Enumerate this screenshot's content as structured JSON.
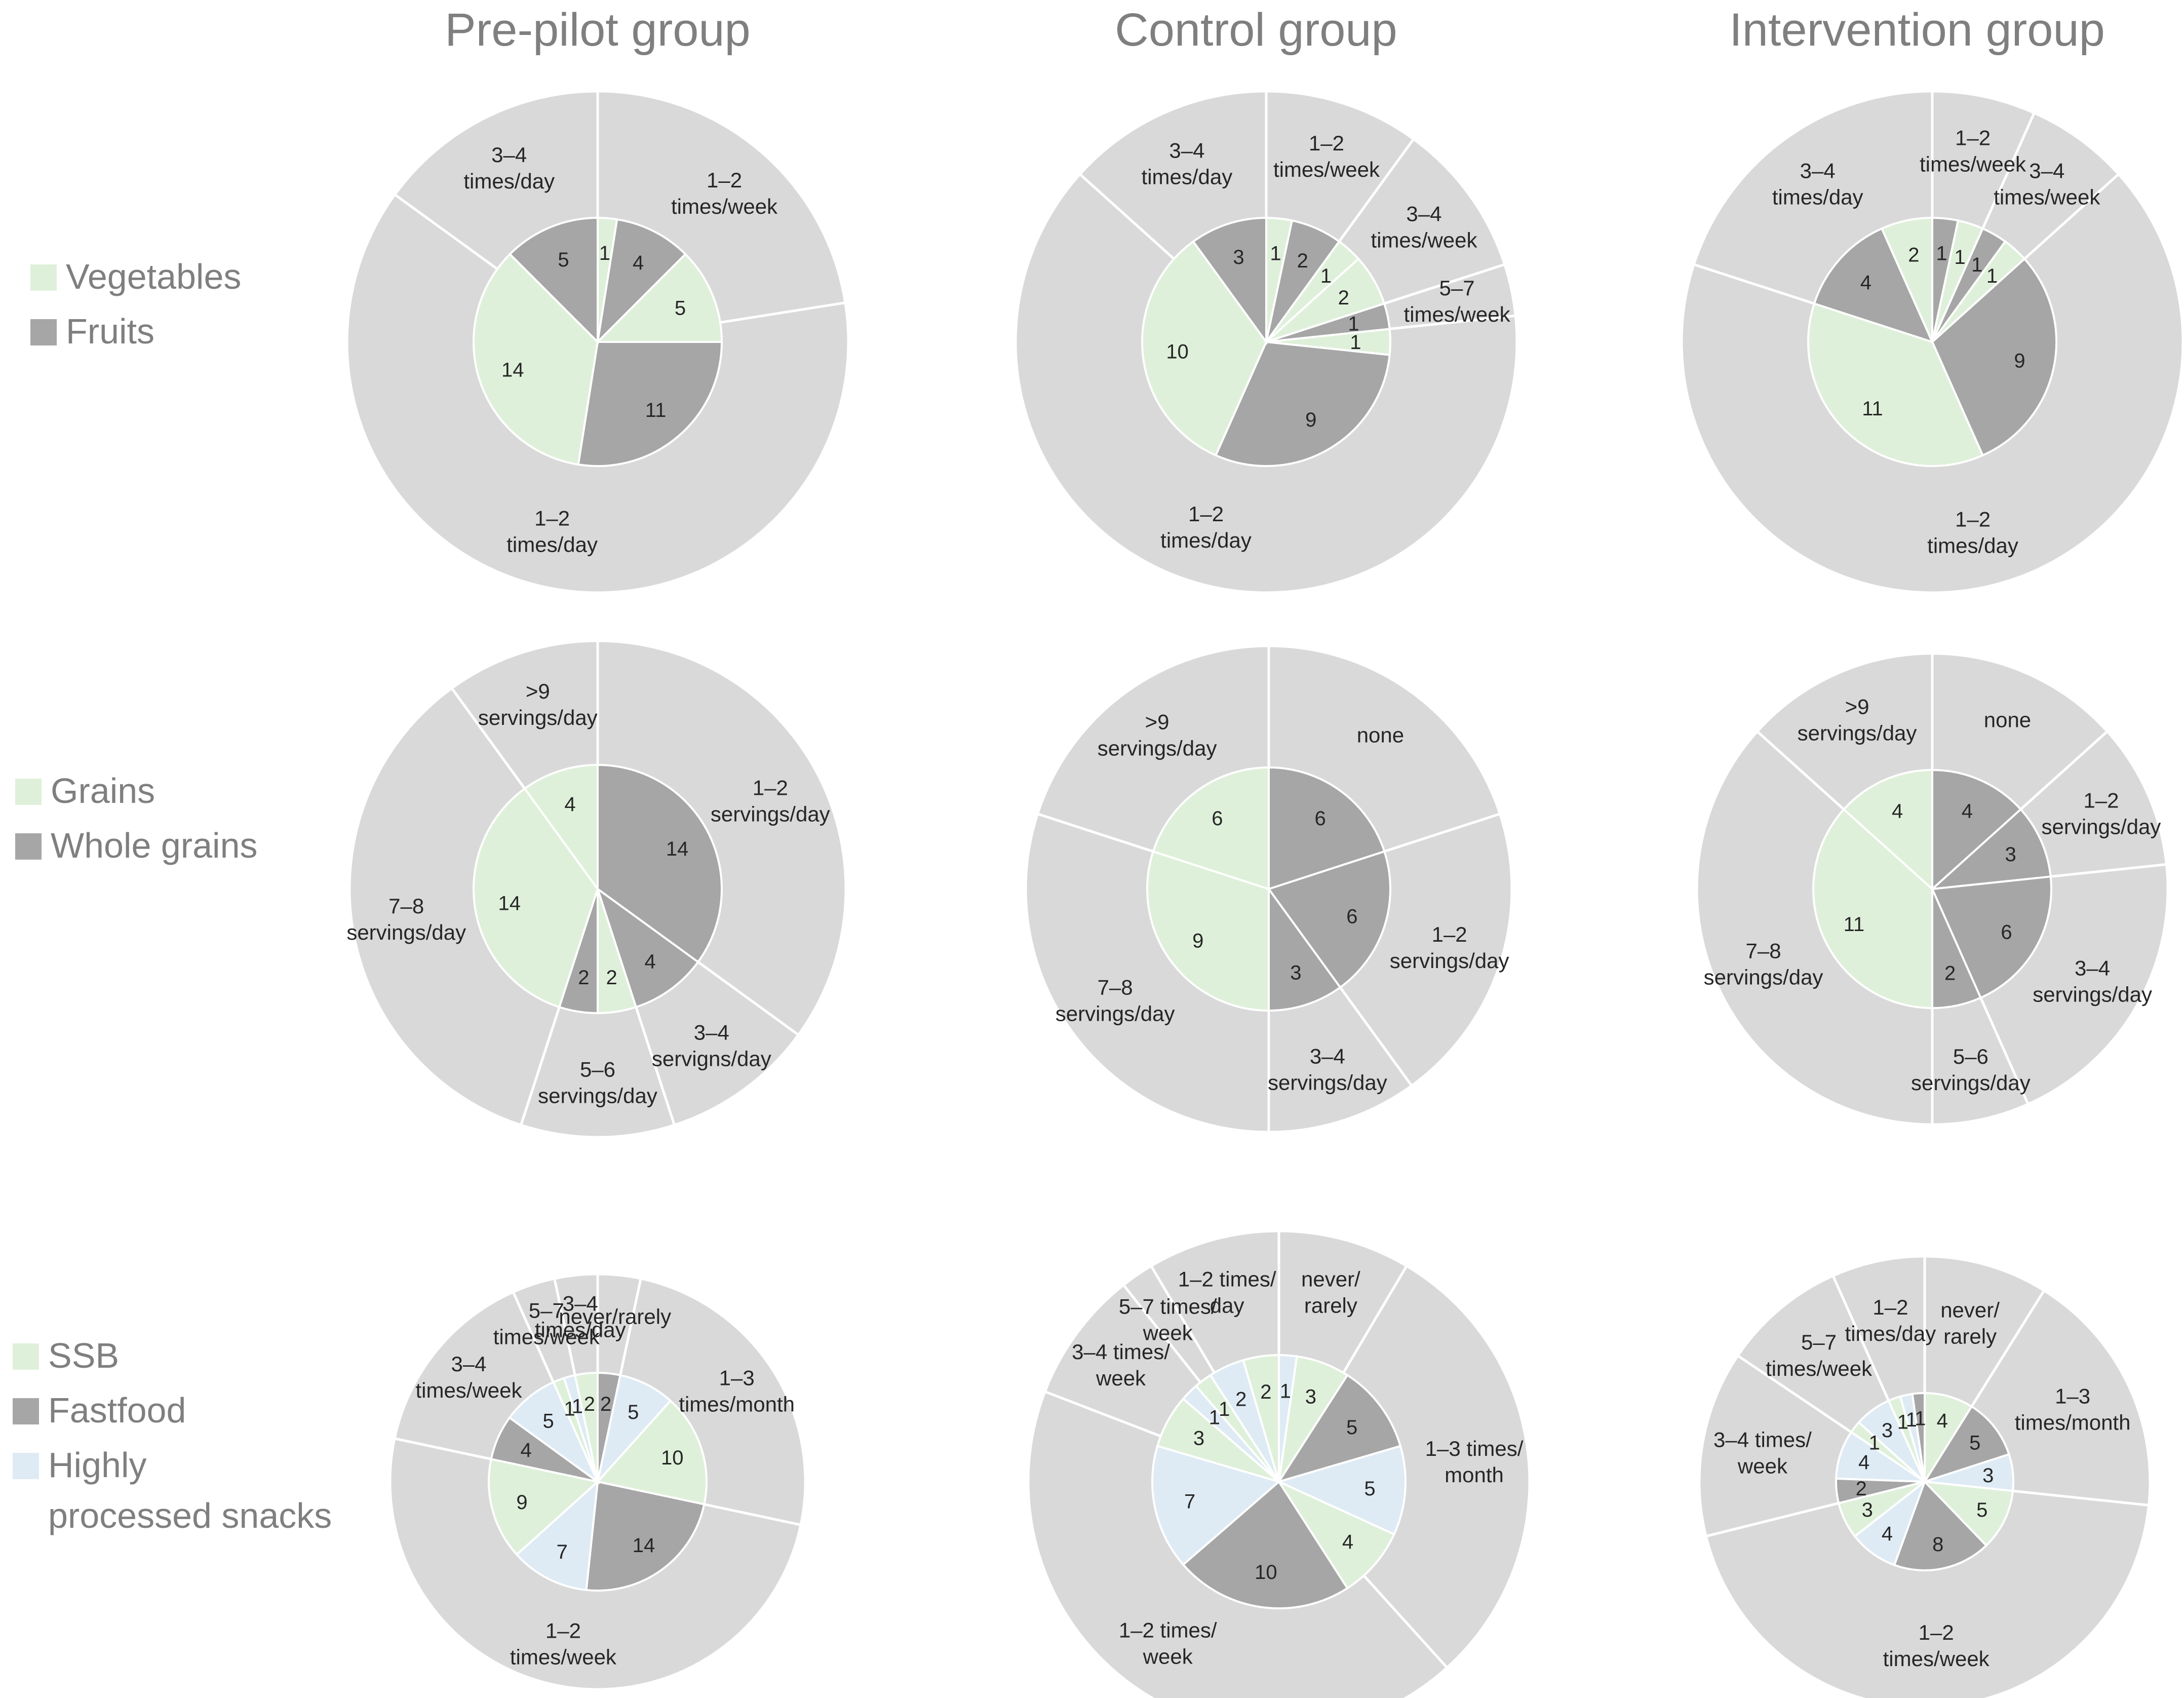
{
  "colors": {
    "vegetables": "#dff0da",
    "fruits": "#a6a6a6",
    "grains": "#dff0da",
    "whole_grains": "#a6a6a6",
    "ssb": "#dff0da",
    "fastfood": "#a6a6a6",
    "snacks": "#deebf5",
    "outer_ring": "#d9d9d9",
    "divider": "#ffffff",
    "title": "#7f7f7f"
  },
  "chart_data": [
    {
      "type": "pie",
      "title": "Pre-pilot group",
      "row": "Vegetables & fruits",
      "inner": [
        {
          "series": "Vegetables",
          "label": "1",
          "value": 1
        },
        {
          "series": "Fruits",
          "label": "4",
          "value": 4
        },
        {
          "series": "Vegetables",
          "label": "5",
          "value": 5
        },
        {
          "series": "Fruits",
          "label": "11",
          "value": 11
        },
        {
          "series": "Vegetables",
          "label": "14",
          "value": 14
        },
        {
          "series": "Fruits",
          "label": "5",
          "value": 5
        }
      ],
      "outer": [
        {
          "label": "1–2 times/week",
          "value": 9
        },
        {
          "label": "1–2 times/day",
          "value": 25
        },
        {
          "label": "3–4 times/day",
          "value": 6
        }
      ]
    },
    {
      "type": "pie",
      "title": "Control group",
      "row": "Vegetables & fruits",
      "inner": [
        {
          "series": "Vegetables",
          "label": "1",
          "value": 1
        },
        {
          "series": "Fruits",
          "label": "2",
          "value": 2
        },
        {
          "series": "Vegetables",
          "label": "1",
          "value": 1
        },
        {
          "series": "Vegetables",
          "label": "2",
          "value": 2
        },
        {
          "series": "Fruits",
          "label": "1",
          "value": 1
        },
        {
          "series": "Vegetables",
          "label": "1",
          "value": 1
        },
        {
          "series": "Fruits",
          "label": "9",
          "value": 9
        },
        {
          "series": "Vegetables",
          "label": "10",
          "value": 10
        },
        {
          "series": "Fruits",
          "label": "3",
          "value": 3
        }
      ],
      "outer": [
        {
          "label": "1–2 times/week",
          "value": 3
        },
        {
          "label": "3–4 times/week",
          "value": 3
        },
        {
          "label": "5–7 times/week",
          "value": 1
        },
        {
          "label": "1–2 times/day",
          "value": 19
        },
        {
          "label": "3–4 times/day",
          "value": 4
        }
      ]
    },
    {
      "type": "pie",
      "title": "Intervention group",
      "row": "Vegetables & fruits",
      "inner": [
        {
          "series": "Fruits",
          "label": "1",
          "value": 1
        },
        {
          "series": "Vegetables",
          "label": "1",
          "value": 1
        },
        {
          "series": "Fruits",
          "label": "1",
          "value": 1
        },
        {
          "series": "Vegetables",
          "label": "1",
          "value": 1
        },
        {
          "series": "Fruits",
          "label": "9",
          "value": 9
        },
        {
          "series": "Vegetables",
          "label": "11",
          "value": 11
        },
        {
          "series": "Fruits",
          "label": "4",
          "value": 4
        },
        {
          "series": "Vegetables",
          "label": "2",
          "value": 2
        }
      ],
      "outer": [
        {
          "label": "1–2 times/week",
          "value": 2
        },
        {
          "label": "3–4 times/week",
          "value": 2
        },
        {
          "label": "1–2 times/day",
          "value": 20
        },
        {
          "label": "3–4 times/day",
          "value": 6
        }
      ]
    },
    {
      "type": "pie",
      "title": "Pre-pilot group",
      "row": "Grains & whole grains",
      "inner": [
        {
          "series": "Whole grains",
          "label": "14",
          "value": 14
        },
        {
          "series": "Whole grains",
          "label": "4",
          "value": 4
        },
        {
          "series": "Grains",
          "label": "2",
          "value": 2
        },
        {
          "series": "Whole grains",
          "label": "2",
          "value": 2
        },
        {
          "series": "Grains",
          "label": "14",
          "value": 14
        },
        {
          "series": "Grains",
          "label": "4",
          "value": 4
        }
      ],
      "outer": [
        {
          "label": "1–2 servings/day",
          "value": 14
        },
        {
          "label": "3–4 servigns/day",
          "value": 4
        },
        {
          "label": "5–6 servings/day",
          "value": 4
        },
        {
          "label": "7–8 servings/day",
          "value": 14
        },
        {
          "label": ">9 servings/day",
          "value": 4
        }
      ]
    },
    {
      "type": "pie",
      "title": "Control group",
      "row": "Grains & whole grains",
      "inner": [
        {
          "series": "Whole grains",
          "label": "6",
          "value": 6
        },
        {
          "series": "Whole grains",
          "label": "6",
          "value": 6
        },
        {
          "series": "Whole grains",
          "label": "3",
          "value": 3
        },
        {
          "series": "Grains",
          "label": "9",
          "value": 9
        },
        {
          "series": "Grains",
          "label": "6",
          "value": 6
        }
      ],
      "outer": [
        {
          "label": "none",
          "value": 6
        },
        {
          "label": "1–2 servings/day",
          "value": 6
        },
        {
          "label": "3–4 servings/day",
          "value": 3
        },
        {
          "label": "7–8 servings/day",
          "value": 9
        },
        {
          "label": ">9 servings/day",
          "value": 6
        }
      ]
    },
    {
      "type": "pie",
      "title": "Intervention group",
      "row": "Grains & whole grains",
      "inner": [
        {
          "series": "Whole grains",
          "label": "4",
          "value": 4
        },
        {
          "series": "Whole grains",
          "label": "3",
          "value": 3
        },
        {
          "series": "Whole grains",
          "label": "6",
          "value": 6
        },
        {
          "series": "Whole grains",
          "label": "2",
          "value": 2
        },
        {
          "series": "Grains",
          "label": "11",
          "value": 11
        },
        {
          "series": "Grains",
          "label": "4",
          "value": 4
        }
      ],
      "outer": [
        {
          "label": "none",
          "value": 4
        },
        {
          "label": "1–2 servings/day",
          "value": 3
        },
        {
          "label": "3–4 servings/day",
          "value": 6
        },
        {
          "label": "5–6 servings/day",
          "value": 2
        },
        {
          "label": "7–8 servings/day",
          "value": 11
        },
        {
          "label": ">9 servings/day",
          "value": 4
        }
      ]
    },
    {
      "type": "pie",
      "title": "Pre-pilot group",
      "row": "SSB, fastfood & highly processed snacks",
      "inner": [
        {
          "series": "Fastfood",
          "label": "2",
          "value": 2
        },
        {
          "series": "Highly processed snacks",
          "label": "5",
          "value": 5
        },
        {
          "series": "SSB",
          "label": "10",
          "value": 10
        },
        {
          "series": "Fastfood",
          "label": "14",
          "value": 14
        },
        {
          "series": "Highly processed snacks",
          "label": "7",
          "value": 7
        },
        {
          "series": "SSB",
          "label": "9",
          "value": 9
        },
        {
          "series": "Fastfood",
          "label": "4",
          "value": 4
        },
        {
          "series": "Highly processed snacks",
          "label": "5",
          "value": 5
        },
        {
          "series": "SSB",
          "label": "1",
          "value": 1
        },
        {
          "series": "Highly processed snacks",
          "label": "1",
          "value": 1
        },
        {
          "series": "SSB",
          "label": "2",
          "value": 2
        }
      ],
      "outer": [
        {
          "label": "never/rarely",
          "value": 2
        },
        {
          "label": "1–3 times/month",
          "value": 15
        },
        {
          "label": "1–2 times/week",
          "value": 30
        },
        {
          "label": "3–4 times/week",
          "value": 9
        },
        {
          "label": "5–7 times/week",
          "value": 2
        },
        {
          "label": "3–4 times/day",
          "value": 2
        }
      ]
    },
    {
      "type": "pie",
      "title": "Control group",
      "row": "SSB, fastfood & highly processed snacks",
      "inner": [
        {
          "series": "Highly processed snacks",
          "label": "1",
          "value": 1
        },
        {
          "series": "SSB",
          "label": "3",
          "value": 3
        },
        {
          "series": "Fastfood",
          "label": "5",
          "value": 5
        },
        {
          "series": "Highly processed snacks",
          "label": "5",
          "value": 5
        },
        {
          "series": "SSB",
          "label": "4",
          "value": 4
        },
        {
          "series": "Fastfood",
          "label": "10",
          "value": 10
        },
        {
          "series": "Highly processed snacks",
          "label": "7",
          "value": 7
        },
        {
          "series": "SSB",
          "label": "3",
          "value": 3
        },
        {
          "series": "Highly processed snacks",
          "label": "1",
          "value": 1
        },
        {
          "series": "SSB",
          "label": "1",
          "value": 1
        },
        {
          "series": "Highly processed snacks",
          "label": "2",
          "value": 2
        },
        {
          "series": "SSB",
          "label": "2",
          "value": 2
        }
      ],
      "outer": [
        {
          "label": "never/ rarely",
          "value": 4
        },
        {
          "label": "1–3 times/ month",
          "value": 14
        },
        {
          "label": "1–2 times/ week",
          "value": 20
        },
        {
          "label": "3–4 times/ week",
          "value": 4
        },
        {
          "label": "5–7 times/ week",
          "value": 1
        },
        {
          "label": "1–2 times/ day",
          "value": 4
        }
      ]
    },
    {
      "type": "pie",
      "title": "Intervention group",
      "row": "SSB, fastfood & highly processed snacks",
      "inner": [
        {
          "series": "SSB",
          "label": "4",
          "value": 4
        },
        {
          "series": "Fastfood",
          "label": "5",
          "value": 5
        },
        {
          "series": "Highly processed snacks",
          "label": "3",
          "value": 3
        },
        {
          "series": "SSB",
          "label": "5",
          "value": 5
        },
        {
          "series": "Fastfood",
          "label": "8",
          "value": 8
        },
        {
          "series": "Highly processed snacks",
          "label": "4",
          "value": 4
        },
        {
          "series": "SSB",
          "label": "3",
          "value": 3
        },
        {
          "series": "Fastfood",
          "label": "2",
          "value": 2
        },
        {
          "series": "Highly processed snacks",
          "label": "4",
          "value": 4
        },
        {
          "series": "SSB",
          "label": "1",
          "value": 1
        },
        {
          "series": "Highly processed snacks",
          "label": "3",
          "value": 3
        },
        {
          "series": "SSB",
          "label": "1",
          "value": 1
        },
        {
          "series": "Highly processed snacks",
          "label": "1",
          "value": 1
        },
        {
          "series": "Fastfood",
          "label": "1",
          "value": 1
        }
      ],
      "outer": [
        {
          "label": "never/ rarely",
          "value": 4
        },
        {
          "label": "1–3 times/month",
          "value": 8
        },
        {
          "label": "1–2 times/week",
          "value": 20
        },
        {
          "label": "3–4 times/ week",
          "value": 6
        },
        {
          "label": "5–7 times/week",
          "value": 4
        },
        {
          "label": "1–2 times/day",
          "value": 3
        }
      ]
    }
  ],
  "column_titles": [
    "Pre-pilot group",
    "Control group",
    "Intervention group"
  ],
  "legends": [
    [
      {
        "key": "vegetables",
        "label": "Vegetables"
      },
      {
        "key": "fruits",
        "label": "Fruits"
      }
    ],
    [
      {
        "key": "grains",
        "label": "Grains"
      },
      {
        "key": "whole_grains",
        "label": "Whole grains"
      }
    ],
    [
      {
        "key": "ssb",
        "label": "SSB"
      },
      {
        "key": "fastfood",
        "label": "Fastfood"
      },
      {
        "key": "snacks",
        "label": "Highly processed snacks"
      }
    ]
  ]
}
